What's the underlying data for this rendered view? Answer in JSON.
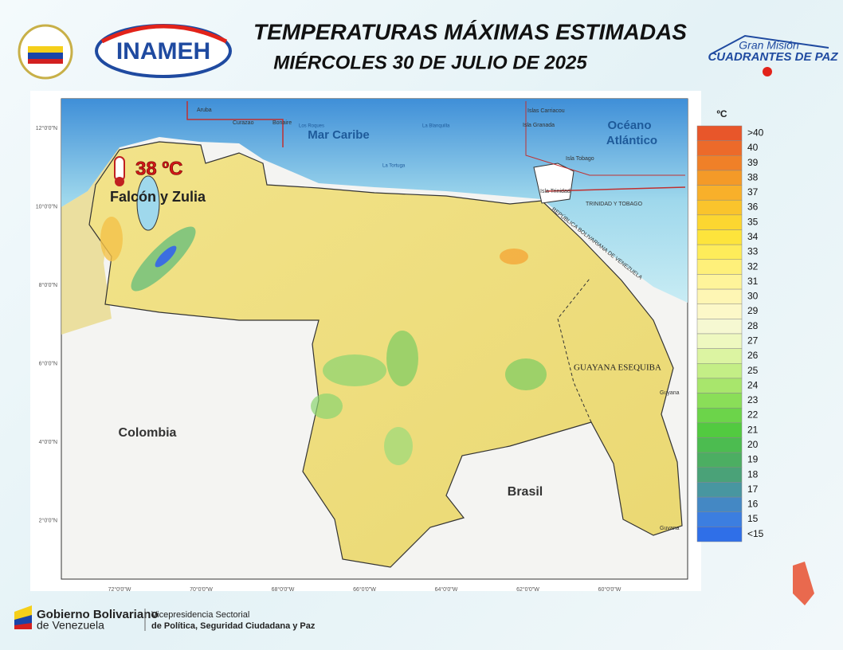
{
  "header": {
    "title": "TEMPERATURAS MÁXIMAS ESTIMADAS",
    "subtitle": "MIÉRCOLES 30 DE JULIO DE 2025",
    "logo_left": "INAMEH",
    "logo_right_top": "Gran Misión",
    "logo_right_bottom": "CUADRANTES DE PAZ"
  },
  "map": {
    "highlight_value": "38 ºC",
    "highlight_region": "Falcón y Zulia",
    "labels": {
      "sea": "Mar Caribe",
      "ocean_1": "Océano",
      "ocean_2": "Atlántico",
      "colombia": "Colombia",
      "brasil": "Brasil",
      "esequiba": "GUAYANA ESEQUIBA",
      "aruba": "Aruba",
      "curazao": "Curazao",
      "bonaire": "Bonaire",
      "roques": "Los Roques",
      "blanquilla": "La Blanquilla",
      "tortuga": "La Tortuga",
      "carriacou": "Islas Carriacou",
      "granada": "Isla Granada",
      "tobago": "Isla Tobago",
      "trinidad": "Isla Trinidad",
      "tt": "TRINIDAD Y TOBAGO",
      "rbv": "REPÚBLICA BOLIVARIANA DE VENEZUELA",
      "guyana_1": "Guyana",
      "guyana_2": "Guyana"
    },
    "lat_labels": [
      "12°0'0\"N",
      "10°0'0\"N",
      "8°0'0\"N",
      "6°0'0\"N",
      "4°0'0\"N",
      "2°0'0\"N"
    ],
    "lon_labels": [
      "72°0'0\"W",
      "70°0'0\"W",
      "68°0'0\"W",
      "66°0'0\"W",
      "64°0'0\"W",
      "62°0'0\"W",
      "60°0'0\"W"
    ]
  },
  "legend": {
    "unit": "ºC",
    "items": [
      {
        "label": ">40",
        "color": "#e8562a"
      },
      {
        "label": "40",
        "color": "#ec6a2a"
      },
      {
        "label": "39",
        "color": "#f08028"
      },
      {
        "label": "38",
        "color": "#f49a28"
      },
      {
        "label": "37",
        "color": "#f8b02a"
      },
      {
        "label": "36",
        "color": "#fac42c"
      },
      {
        "label": "35",
        "color": "#fcd630"
      },
      {
        "label": "34",
        "color": "#fde43c"
      },
      {
        "label": "33",
        "color": "#feec5a"
      },
      {
        "label": "32",
        "color": "#fef07a"
      },
      {
        "label": "31",
        "color": "#fef49a"
      },
      {
        "label": "30",
        "color": "#fef6b4"
      },
      {
        "label": "29",
        "color": "#fcf8c8"
      },
      {
        "label": "28",
        "color": "#f6f8d2"
      },
      {
        "label": "27",
        "color": "#eef8c0"
      },
      {
        "label": "26",
        "color": "#dcf4a2"
      },
      {
        "label": "25",
        "color": "#c4ee86"
      },
      {
        "label": "24",
        "color": "#a8e66c"
      },
      {
        "label": "23",
        "color": "#8ade58"
      },
      {
        "label": "22",
        "color": "#6cd44a"
      },
      {
        "label": "21",
        "color": "#52ca40"
      },
      {
        "label": "20",
        "color": "#4cbc50"
      },
      {
        "label": "19",
        "color": "#4cae62"
      },
      {
        "label": "18",
        "color": "#4aa278"
      },
      {
        "label": "17",
        "color": "#4896a0"
      },
      {
        "label": "16",
        "color": "#4488c4"
      },
      {
        "label": "15",
        "color": "#3c7ee0"
      },
      {
        "label": "<15",
        "color": "#2f6fe8"
      }
    ]
  },
  "footer": {
    "gov_1": "Gobierno Bolivariano",
    "gov_2": "de Venezuela",
    "vice_1": "Vicepresidencia Sectorial",
    "vice_2": "de Política, Seguridad Ciudadana y Paz"
  }
}
